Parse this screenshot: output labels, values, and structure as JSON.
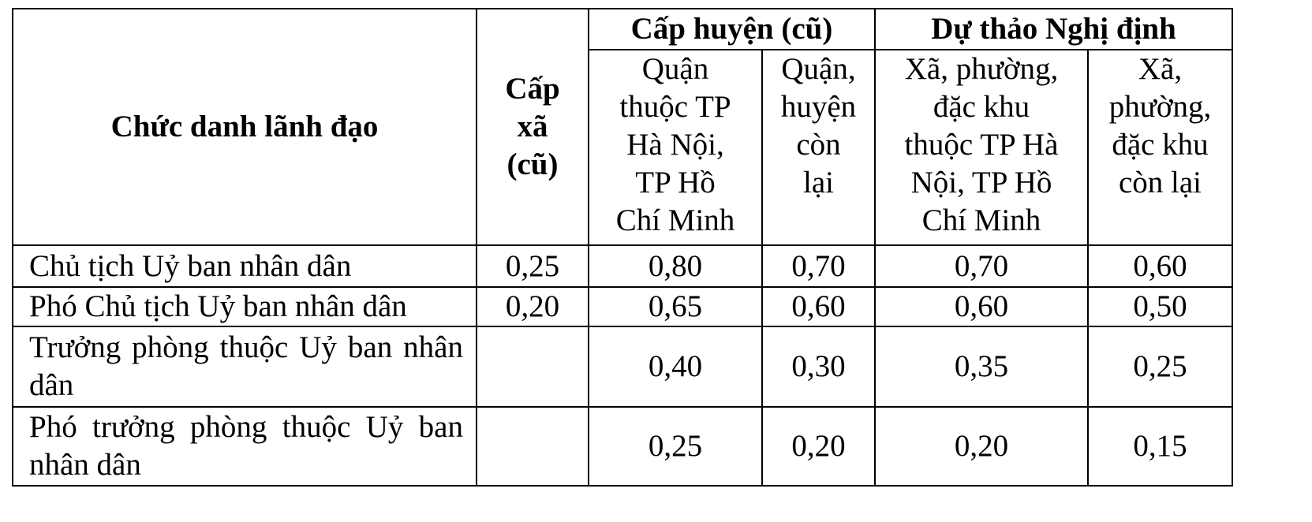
{
  "header": {
    "title_column": "Chức danh lãnh đạo",
    "commune_column": [
      "Cấp",
      "xã",
      "(cũ)"
    ],
    "groups": [
      {
        "title": "Cấp huyện (cũ)",
        "columns": [
          [
            "Quận",
            "thuộc TP",
            "Hà Nội,",
            "TP Hồ",
            "Chí Minh"
          ],
          [
            "Quận,",
            "huyện",
            "còn",
            "lại"
          ]
        ]
      },
      {
        "title": "Dự thảo Nghị định",
        "columns": [
          [
            "Xã, phường,",
            "đặc khu",
            "thuộc TP Hà",
            "Nội, TP Hồ",
            "Chí Minh"
          ],
          [
            "Xã,",
            "phường,",
            "đặc khu",
            "còn lại"
          ]
        ]
      }
    ]
  },
  "table": {
    "rows": [
      [
        "Chủ tịch Uỷ ban nhân dân",
        "0,25",
        "0,80",
        "0,70",
        "0,70",
        "0,60"
      ],
      [
        "Phó Chủ tịch Uỷ ban nhân dân",
        "0,20",
        "0,65",
        "0,60",
        "0,60",
        "0,50"
      ],
      [
        "Trưởng phòng thuộc Uỷ ban nhân dân",
        null,
        "0,40",
        "0,30",
        "0,35",
        "0,25"
      ],
      [
        "Phó trưởng phòng thuộc Uỷ ban nhân dân",
        null,
        "0,25",
        "0,20",
        "0,20",
        "0,15"
      ]
    ]
  }
}
